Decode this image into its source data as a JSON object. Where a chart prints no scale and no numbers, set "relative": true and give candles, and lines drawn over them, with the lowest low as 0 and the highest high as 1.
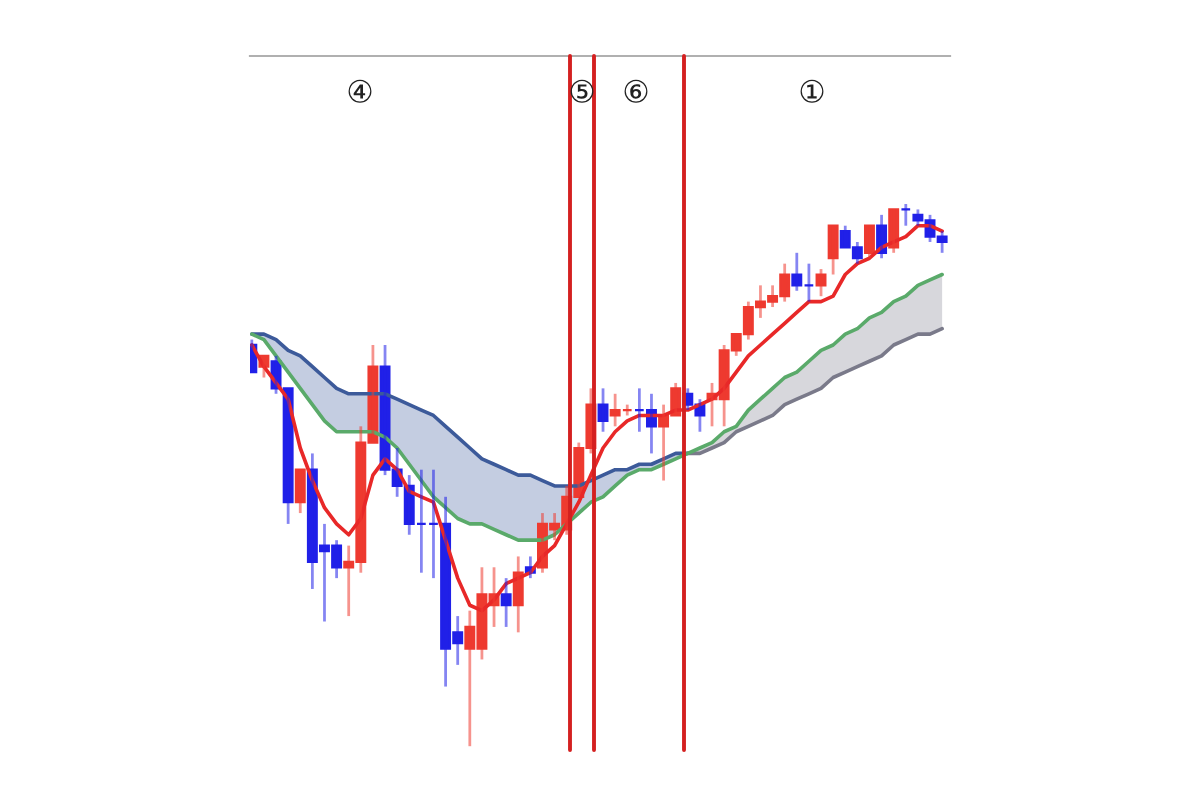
{
  "chart_data": {
    "type": "candlestick",
    "relative": true,
    "categories": [
      null,
      null,
      null,
      null,
      null,
      null,
      null,
      null,
      null,
      null,
      null,
      null,
      null,
      null,
      null,
      null,
      null,
      null,
      null,
      null,
      null,
      null,
      null,
      null,
      null,
      null,
      null,
      null,
      null,
      null,
      null,
      null,
      null,
      null,
      null,
      null,
      null,
      null,
      null,
      null,
      null,
      null,
      null,
      null,
      null,
      null,
      null,
      null,
      null,
      null,
      null,
      null,
      null,
      null,
      null,
      null,
      null,
      null
    ],
    "ohlc": [
      [
        0.74,
        0.75,
        0.69,
        0.69
      ],
      [
        0.7,
        0.72,
        0.68,
        0.72
      ],
      [
        0.71,
        0.72,
        0.65,
        0.66
      ],
      [
        0.66,
        0.66,
        0.41,
        0.45
      ],
      [
        0.45,
        0.51,
        0.43,
        0.51
      ],
      [
        0.51,
        0.54,
        0.29,
        0.34
      ],
      [
        0.37,
        0.41,
        0.23,
        0.36
      ],
      [
        0.37,
        0.38,
        0.31,
        0.33
      ],
      [
        0.33,
        0.37,
        0.24,
        0.34
      ],
      [
        0.34,
        0.59,
        0.32,
        0.56
      ],
      [
        0.56,
        0.74,
        0.56,
        0.7
      ],
      [
        0.7,
        0.74,
        0.5,
        0.51
      ],
      [
        0.51,
        0.55,
        0.46,
        0.48
      ],
      [
        0.48,
        0.5,
        0.39,
        0.41
      ],
      [
        0.41,
        0.51,
        0.32,
        0.41
      ],
      [
        0.41,
        0.51,
        0.31,
        0.41
      ],
      [
        0.41,
        0.46,
        0.11,
        0.18
      ],
      [
        0.21,
        0.24,
        0.15,
        0.19
      ],
      [
        0.18,
        0.25,
        0,
        0.22
      ],
      [
        0.18,
        0.33,
        0.16,
        0.28
      ],
      [
        0.26,
        0.33,
        0.22,
        0.28
      ],
      [
        0.28,
        0.31,
        0.22,
        0.26
      ],
      [
        0.26,
        0.35,
        0.21,
        0.32
      ],
      [
        0.33,
        0.35,
        0.31,
        0.32
      ],
      [
        0.33,
        0.43,
        0.32,
        0.41
      ],
      [
        0.4,
        0.43,
        0.38,
        0.41
      ],
      [
        0.4,
        0.48,
        0.39,
        0.46
      ],
      [
        0.46,
        0.56,
        0.46,
        0.55
      ],
      [
        0.55,
        0.66,
        0.54,
        0.63
      ],
      [
        0.63,
        0.66,
        0.58,
        0.6
      ],
      [
        0.61,
        0.65,
        0.59,
        0.62
      ],
      [
        0.62,
        0.63,
        0.61,
        0.62
      ],
      [
        0.62,
        0.66,
        0.58,
        0.62
      ],
      [
        0.62,
        0.65,
        0.54,
        0.59
      ],
      [
        0.59,
        0.63,
        0.49,
        0.61
      ],
      [
        0.61,
        0.67,
        0.61,
        0.66
      ],
      [
        0.65,
        0.66,
        0.62,
        0.63
      ],
      [
        0.63,
        0.64,
        0.58,
        0.61
      ],
      [
        0.64,
        0.67,
        0.59,
        0.65
      ],
      [
        0.64,
        0.74,
        0.59,
        0.73
      ],
      [
        0.73,
        0.76,
        0.72,
        0.76
      ],
      [
        0.76,
        0.82,
        0.75,
        0.81
      ],
      [
        0.81,
        0.85,
        0.79,
        0.82
      ],
      [
        0.82,
        0.85,
        0.81,
        0.83
      ],
      [
        0.83,
        0.89,
        0.82,
        0.87
      ],
      [
        0.87,
        0.91,
        0.84,
        0.85
      ],
      [
        0.85,
        0.89,
        0.82,
        0.85
      ],
      [
        0.85,
        0.88,
        0.83,
        0.87
      ],
      [
        0.9,
        0.96,
        0.87,
        0.96
      ],
      [
        0.95,
        0.96,
        0.92,
        0.92
      ],
      [
        0.92,
        0.93,
        0.89,
        0.9
      ],
      [
        0.91,
        0.96,
        0.9,
        0.96
      ],
      [
        0.96,
        0.98,
        0.9,
        0.91
      ],
      [
        0.92,
        0.99,
        0.91,
        0.99
      ],
      [
        0.99,
        1,
        0.96,
        0.99
      ],
      [
        0.98,
        0.99,
        0.96,
        0.97
      ],
      [
        0.97,
        0.98,
        0.93,
        0.94
      ],
      [
        0.94,
        0.95,
        0.91,
        0.93
      ]
    ],
    "colors": [
      "#2020e8",
      "#ee3a30",
      "#2020e8",
      "#2020e8",
      "#ee3a30",
      "#2020e8",
      "#2020e8",
      "#2020e8",
      "#ee3a30",
      "#ee3a30",
      "#ee3a30",
      "#2020e8",
      "#2020e8",
      "#2020e8",
      "#2020e8",
      "#2020e8",
      "#2020e8",
      "#2020e8",
      "#ee3a30",
      "#ee3a30",
      "#ee3a30",
      "#2020e8",
      "#ee3a30",
      "#2020e8",
      "#ee3a30",
      "#ee3a30",
      "#ee3a30",
      "#ee3a30",
      "#ee3a30",
      "#2020e8",
      "#ee3a30",
      "#ee3a30",
      "#2020e8",
      "#2020e8",
      "#ee3a30",
      "#ee3a30",
      "#2020e8",
      "#2020e8",
      "#ee3a30",
      "#ee3a30",
      "#ee3a30",
      "#ee3a30",
      "#ee3a30",
      "#ee3a30",
      "#ee3a30",
      "#2020e8",
      "#2020e8",
      "#ee3a30",
      "#ee3a30",
      "#2020e8",
      "#2020e8",
      "#ee3a30",
      "#2020e8",
      "#ee3a30",
      "#2020e8",
      "#2020e8",
      "#2020e8",
      "#2020e8"
    ],
    "series": [
      {
        "type": "line",
        "color": "#3c5a9a",
        "values": [
          0.76,
          0.76,
          0.75,
          0.73,
          0.72,
          0.7,
          0.68,
          0.66,
          0.65,
          0.65,
          0.65,
          0.65,
          0.64,
          0.63,
          0.62,
          0.61,
          0.59,
          0.57,
          0.55,
          0.53,
          0.52,
          0.51,
          0.5,
          0.5,
          0.49,
          0.48,
          0.48,
          0.48,
          0.49,
          0.5,
          0.51,
          0.51,
          0.52,
          0.52,
          0.53,
          0.54,
          0.54,
          null,
          null,
          null,
          null,
          null,
          null,
          null,
          null,
          null,
          null,
          null,
          null,
          null,
          null,
          null,
          null,
          null,
          null,
          null,
          null,
          null
        ],
        "lower": [
          0.76,
          0.75,
          0.72,
          0.69,
          0.66,
          0.63,
          0.6,
          0.58,
          0.58,
          0.58,
          0.58,
          0.57,
          0.55,
          0.52,
          0.49,
          0.46,
          0.44,
          0.42,
          0.41,
          0.41,
          0.4,
          0.39,
          0.38,
          0.38,
          0.38,
          0.39,
          0.41,
          0.43,
          0.45,
          0.46,
          0.48,
          0.5,
          0.51,
          0.51,
          0.52,
          0.53,
          0.54,
          null,
          null,
          null,
          null,
          null,
          null,
          null,
          null,
          null,
          null,
          null,
          null,
          null,
          null,
          null,
          null,
          null,
          null,
          null,
          null,
          null
        ],
        "upper": [
          0.76,
          0.76,
          0.75,
          0.73,
          0.72,
          0.7,
          0.68,
          0.66,
          0.65,
          0.65,
          0.65,
          0.65,
          0.64,
          0.63,
          0.62,
          0.61,
          0.59,
          0.57,
          0.55,
          0.53,
          0.52,
          0.51,
          0.5,
          0.5,
          0.49,
          0.48,
          0.48,
          0.48,
          0.49,
          0.5,
          0.51,
          0.51,
          0.52,
          0.52,
          0.53,
          0.54,
          0.54,
          null,
          null,
          null,
          null,
          null,
          null,
          null,
          null,
          null,
          null,
          null,
          null,
          null,
          null,
          null,
          null,
          null,
          null,
          null,
          null,
          null
        ]
      },
      {
        "type": "line",
        "color": "#7a7a8a",
        "values": [
          null,
          null,
          null,
          null,
          null,
          null,
          null,
          null,
          null,
          null,
          null,
          null,
          null,
          null,
          null,
          null,
          null,
          null,
          null,
          null,
          null,
          null,
          null,
          null,
          null,
          null,
          null,
          null,
          null,
          null,
          null,
          null,
          null,
          null,
          null,
          null,
          0.54,
          0.54,
          0.55,
          0.56,
          0.58,
          0.59,
          0.6,
          0.61,
          0.63,
          0.64,
          0.65,
          0.66,
          0.68,
          0.69,
          0.7,
          0.71,
          0.72,
          0.74,
          0.75,
          0.76,
          0.76,
          0.77
        ],
        "lower": [
          null,
          null,
          null,
          null,
          null,
          null,
          null,
          null,
          null,
          null,
          null,
          null,
          null,
          null,
          null,
          null,
          null,
          null,
          null,
          null,
          null,
          null,
          null,
          null,
          null,
          null,
          null,
          null,
          null,
          null,
          null,
          null,
          null,
          null,
          null,
          null,
          0.54,
          0.54,
          0.55,
          0.56,
          0.58,
          0.59,
          0.6,
          0.61,
          0.63,
          0.64,
          0.65,
          0.66,
          0.68,
          0.69,
          0.7,
          0.71,
          0.72,
          0.74,
          0.75,
          0.76,
          0.76,
          0.77
        ],
        "upper": [
          null,
          null,
          null,
          null,
          null,
          null,
          null,
          null,
          null,
          null,
          null,
          null,
          null,
          null,
          null,
          null,
          null,
          null,
          null,
          null,
          null,
          null,
          null,
          null,
          null,
          null,
          null,
          null,
          null,
          null,
          null,
          null,
          null,
          null,
          null,
          null,
          0.54,
          0.55,
          0.56,
          0.58,
          0.59,
          0.62,
          0.64,
          0.66,
          0.68,
          0.69,
          0.71,
          0.73,
          0.74,
          0.76,
          0.77,
          0.79,
          0.8,
          0.82,
          0.83,
          0.85,
          0.86,
          0.87
        ]
      },
      {
        "type": "line",
        "color": "#5aaa6a",
        "values": [
          0.76,
          0.75,
          0.72,
          0.69,
          0.66,
          0.63,
          0.6,
          0.58,
          0.58,
          0.58,
          0.58,
          0.57,
          0.55,
          0.52,
          0.49,
          0.46,
          0.44,
          0.42,
          0.41,
          0.41,
          0.4,
          0.39,
          0.38,
          0.38,
          0.38,
          0.39,
          0.41,
          0.43,
          0.45,
          0.46,
          0.48,
          0.5,
          0.51,
          0.51,
          0.52,
          0.53,
          0.54,
          0.55,
          0.56,
          0.58,
          0.59,
          0.62,
          0.64,
          0.66,
          0.68,
          0.69,
          0.71,
          0.73,
          0.74,
          0.76,
          0.77,
          0.79,
          0.8,
          0.82,
          0.83,
          0.85,
          0.86,
          0.87
        ]
      },
      {
        "type": "line",
        "color": "#e82828",
        "values": [
          0.74,
          0.7,
          0.67,
          0.64,
          0.55,
          0.49,
          0.44,
          0.41,
          0.39,
          0.42,
          0.5,
          0.53,
          0.51,
          0.47,
          0.46,
          0.45,
          0.38,
          0.31,
          0.26,
          0.25,
          0.27,
          0.3,
          0.31,
          0.32,
          0.35,
          0.37,
          0.41,
          0.45,
          0.5,
          0.55,
          0.58,
          0.6,
          0.61,
          0.61,
          0.61,
          0.62,
          0.62,
          0.63,
          0.64,
          0.66,
          0.69,
          0.72,
          0.74,
          0.76,
          0.78,
          0.8,
          0.82,
          0.82,
          0.83,
          0.87,
          0.89,
          0.9,
          0.92,
          0.93,
          0.94,
          0.96,
          0.96,
          0.95
        ]
      }
    ],
    "annotations": [
      "④",
      "⑤",
      "⑥",
      "①"
    ]
  }
}
